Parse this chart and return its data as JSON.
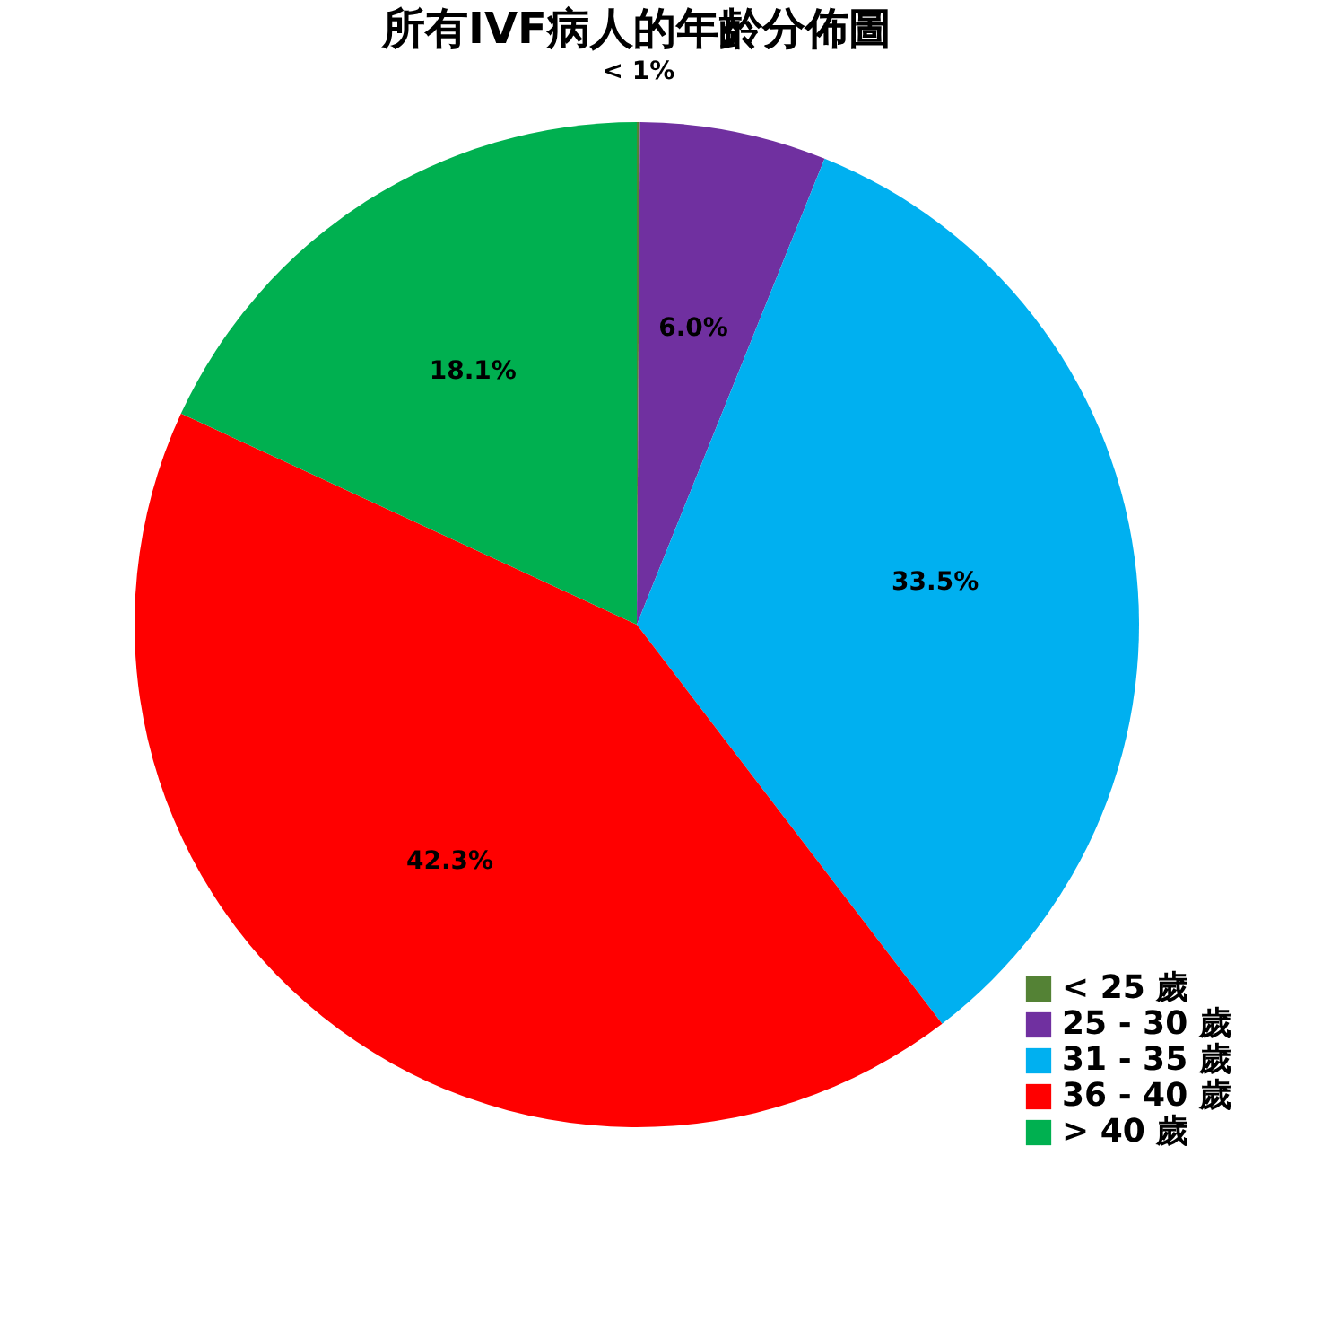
{
  "chart_data": {
    "type": "pie",
    "title": "所有IVF病人的年齡分佈圖",
    "categories": [
      "< 25 歲",
      "25 - 30 歲",
      "31 - 35 歲",
      "36 - 40 歲",
      "> 40 歲"
    ],
    "values": [
      0.1,
      6.0,
      33.5,
      42.3,
      18.1
    ],
    "colors": [
      "#548235",
      "#7030a0",
      "#00b0f0",
      "#ff0000",
      "#00b050"
    ],
    "value_labels": [
      "< 1%",
      "6.0%",
      "33.5%",
      "42.3%",
      "18.1%"
    ],
    "legend": "bottom right"
  }
}
